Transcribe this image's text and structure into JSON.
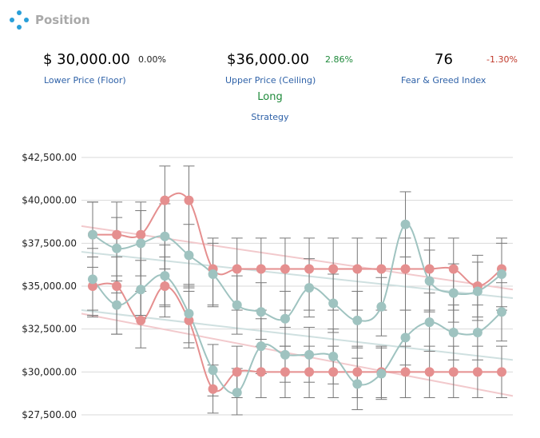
{
  "header": {
    "icon": "blue-dots-icon",
    "title": "Position"
  },
  "metrics": {
    "lower": {
      "value": "$ 30,000.00",
      "change": "0.00%",
      "label": "Lower Price (Floor)"
    },
    "upper": {
      "value": "$36,000.00",
      "change": "2.86%",
      "label": "Upper Price (Ceiling)"
    },
    "fear_greed": {
      "value": "76",
      "change": "-1.30%",
      "label": "Fear & Greed Index"
    }
  },
  "strategy": {
    "value": "Long",
    "label": "Strategy"
  },
  "colors": {
    "pink_series": "#e58f8f",
    "teal_series": "#9fc3c0",
    "pink_trend": "#f2c9cc",
    "teal_trend": "#cfe0e0",
    "error_bar": "#777777"
  },
  "chart_data": {
    "type": "line",
    "x": [
      1,
      2,
      3,
      4,
      5,
      6,
      7,
      8,
      9,
      10,
      11,
      12,
      13,
      14,
      15,
      16,
      17,
      18
    ],
    "ylim": [
      27500,
      42500
    ],
    "yticks": [
      27500,
      30000,
      32500,
      35000,
      37500,
      40000,
      42500
    ],
    "ytick_labels": [
      "$27,500.00",
      "$30,000.00",
      "$32,500.00",
      "$35,000.00",
      "$37,500.00",
      "$40,000.00",
      "$42,500.00"
    ],
    "grid": true,
    "series": [
      {
        "color": "pink",
        "values": [
          38000,
          38000,
          38000,
          40000,
          40000,
          36000,
          36000,
          36000,
          36000,
          36000,
          36000,
          36000,
          36000,
          36000,
          36000,
          36000,
          35000,
          36000
        ],
        "error_low": [
          33300,
          34600,
          33300,
          33900,
          35000,
          33900,
          33600,
          33600,
          33600,
          33600,
          33600,
          33600,
          33600,
          33600,
          33600,
          33600,
          33200,
          33600
        ],
        "error_high": [
          39900,
          39900,
          39900,
          42000,
          42000,
          37800,
          37800,
          37800,
          37800,
          37800,
          37800,
          37800,
          37800,
          37800,
          37800,
          37800,
          36800,
          37800
        ]
      },
      {
        "color": "pink",
        "values": [
          35000,
          35000,
          33000,
          35000,
          33000,
          29000,
          30000,
          30000,
          30000,
          30000,
          30000,
          30000,
          30000,
          30000,
          30000,
          30000,
          30000,
          30000
        ],
        "error_low": [
          33200,
          32200,
          31400,
          33200,
          31400,
          27600,
          28500,
          28500,
          28500,
          28500,
          28500,
          28500,
          28500,
          28500,
          28500,
          28500,
          28500,
          28500
        ],
        "error_high": [
          36700,
          36700,
          34700,
          36700,
          34700,
          30400,
          31500,
          31500,
          31500,
          31500,
          31500,
          31500,
          31500,
          31500,
          31500,
          31500,
          31500,
          31500
        ]
      },
      {
        "color": "teal",
        "values": [
          38000,
          37200,
          37500,
          37900,
          36800,
          35700,
          33900,
          33500,
          33100,
          34900,
          34000,
          33000,
          33800,
          38600,
          35300,
          34600,
          34700,
          35700
        ],
        "error_low": [
          36100,
          35300,
          35600,
          36000,
          34900,
          33800,
          32200,
          31900,
          31500,
          33200,
          32300,
          31400,
          32100,
          36700,
          33500,
          32900,
          33000,
          33800
        ],
        "error_high": [
          39900,
          39000,
          39400,
          39800,
          38600,
          37500,
          35600,
          35200,
          34700,
          36600,
          35700,
          34700,
          35500,
          40500,
          37100,
          36300,
          36400,
          37500
        ]
      },
      {
        "color": "teal",
        "values": [
          35400,
          33900,
          34800,
          35600,
          33400,
          30100,
          28800,
          31500,
          31000,
          31000,
          30900,
          29300,
          29900,
          32000,
          32900,
          32300,
          32300,
          33500
        ],
        "error_low": [
          33600,
          32200,
          33100,
          33800,
          31700,
          28600,
          27500,
          29900,
          29400,
          29400,
          29300,
          27800,
          28400,
          30400,
          31200,
          30700,
          30700,
          31800
        ],
        "error_high": [
          37200,
          35600,
          36500,
          37400,
          35100,
          31600,
          30200,
          33100,
          32600,
          32600,
          32500,
          30800,
          31400,
          33600,
          34600,
          33900,
          33900,
          35200
        ]
      }
    ],
    "trendlines": [
      {
        "color": "pink",
        "from": 38500,
        "to": 34800
      },
      {
        "color": "pink",
        "from": 33400,
        "to": 28600
      },
      {
        "color": "teal",
        "from": 37000,
        "to": 34300
      },
      {
        "color": "teal",
        "from": 33600,
        "to": 30700
      }
    ]
  }
}
